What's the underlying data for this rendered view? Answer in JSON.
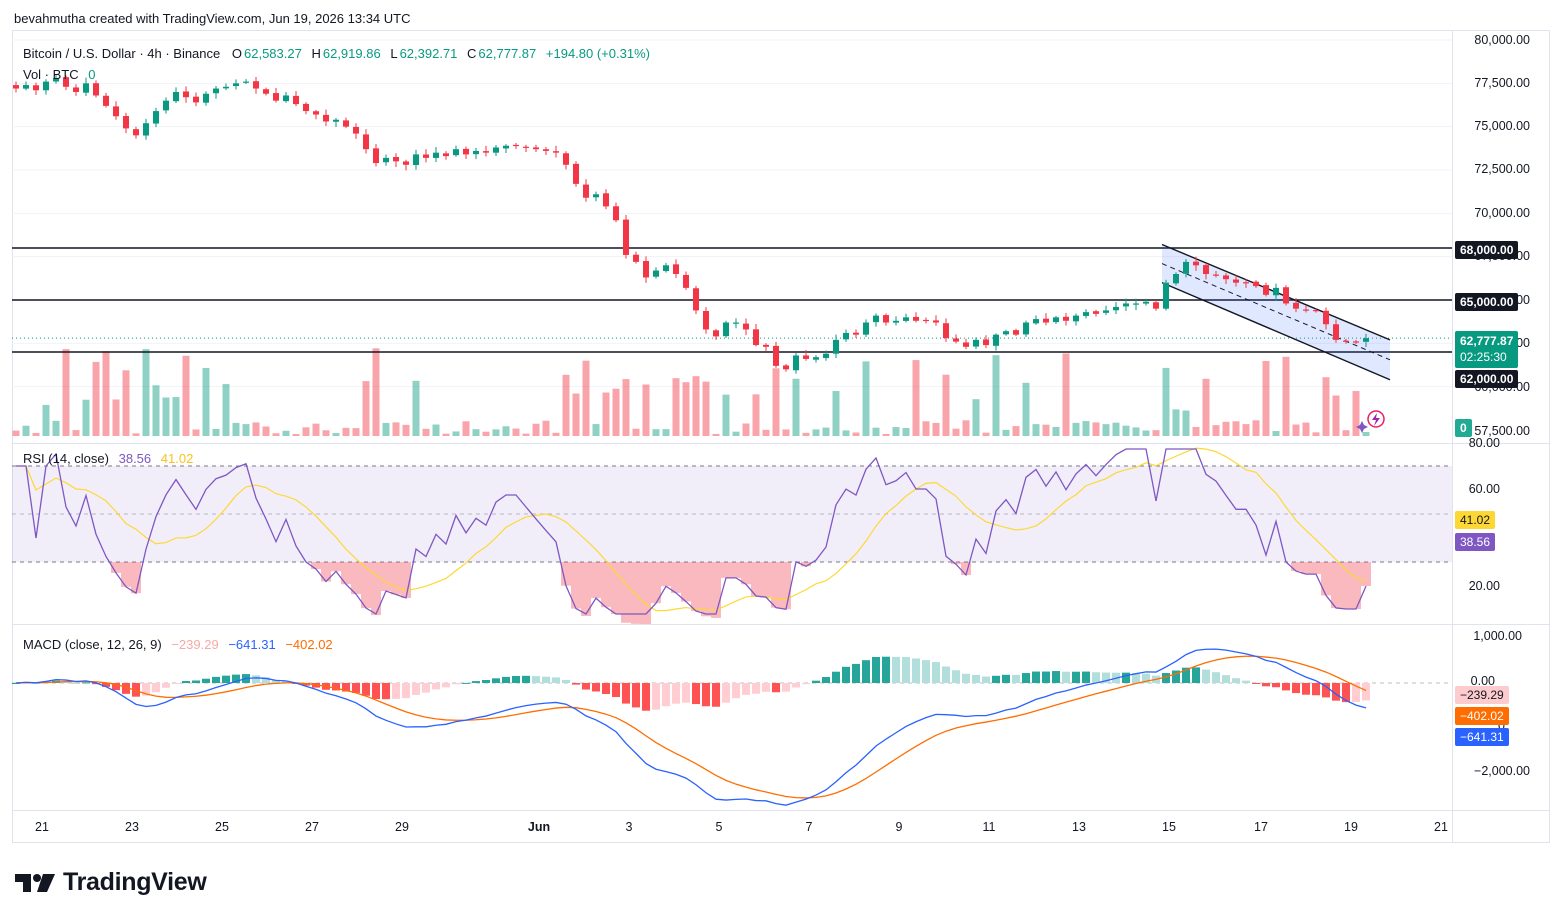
{
  "header": {
    "caption": "bevahmutha created with TradingView.com, Jun 19, 2026 13:34 UTC"
  },
  "legend": {
    "symbol": "Bitcoin / U.S. Dollar · 4h · Binance",
    "o_label": "O",
    "o_value": "62,583.27",
    "h_label": "H",
    "h_value": "62,919.86",
    "l_label": "L",
    "l_value": "62,392.71",
    "c_label": "C",
    "c_value": "62,777.87",
    "change": "+194.80 (+0.31%)",
    "volume_label": "Vol · BTC",
    "volume_value": "0"
  },
  "price_axis": [
    "80,000.00",
    "77,500.00",
    "75,000.00",
    "72,500.00",
    "70,000.00",
    "67,500.00",
    "65,000.00",
    "62,500.00",
    "60,000.00",
    "57,500.00"
  ],
  "price_tags": {
    "r68": "68,000.00",
    "r65": "65,000.00",
    "last": "62,777.87",
    "countdown": "02:25:30",
    "s62": "62,000.00",
    "vol": "0"
  },
  "rsi": {
    "label": "RSI (14, close)",
    "rsi_value": "38.56",
    "ma_value": "41.02",
    "axis": [
      "80.00",
      "60.00",
      "20.00"
    ]
  },
  "macd": {
    "label": "MACD (close, 12, 26, 9)",
    "hist_value": "−239.29",
    "macd_value": "−641.31",
    "signal_value": "−402.02",
    "axis": [
      "1,000.00",
      "0.00",
      "0",
      "−2,000.00"
    ]
  },
  "date_axis": [
    "21",
    "23",
    "25",
    "27",
    "29",
    "Jun",
    "3",
    "5",
    "7",
    "9",
    "11",
    "13",
    "15",
    "17",
    "19",
    "21"
  ],
  "footer": {
    "brand": "TradingView"
  },
  "colors": {
    "up": "#089981",
    "down": "#f23645",
    "rsi": "#7e57c2",
    "rsi_ma": "#fdd835",
    "macd": "#2962ff",
    "signal": "#ff6d00",
    "channel": "#2962ff"
  },
  "chart_data": {
    "type": "candlestick",
    "closes": [
      77200,
      77400,
      77100,
      77600,
      77800,
      77300,
      77000,
      77500,
      76800,
      76200,
      75600,
      74900,
      74500,
      75200,
      75900,
      76500,
      77000,
      76700,
      76400,
      76900,
      77200,
      77300,
      77500,
      77600,
      77200,
      76900,
      76500,
      76800,
      76300,
      75900,
      75700,
      75300,
      75400,
      75000,
      74600,
      73700,
      72900,
      73200,
      73000,
      72800,
      73400,
      73200,
      73500,
      73300,
      73700,
      73400,
      73600,
      73500,
      73800,
      73900,
      73900,
      73800,
      73700,
      73600,
      73500,
      72800,
      71700,
      70900,
      71100,
      70400,
      69600,
      67600,
      67200,
      66300,
      66700,
      67000,
      66500,
      65700,
      64400,
      63300,
      62900,
      63700,
      63700,
      63300,
      62400,
      62300,
      61200,
      61000,
      61800,
      61600,
      61700,
      61900,
      62700,
      63100,
      63000,
      63700,
      64100,
      63700,
      63800,
      64000,
      63800,
      63800,
      63700,
      62800,
      62600,
      62300,
      62700,
      62400,
      63000,
      63200,
      63000,
      63700,
      63900,
      63700,
      64000,
      63800,
      64100,
      64300,
      64200,
      64400,
      64600,
      64800,
      64800,
      64900,
      64500,
      66000,
      66500,
      67200,
      67000,
      66500,
      66400,
      66200,
      66000,
      66000,
      65800,
      65300,
      65700,
      64800,
      64500,
      64400,
      64400,
      63600,
      62700,
      62600,
      62600,
      62800
    ],
    "rsi_series": "RSI (14, close)",
    "macd_series": "MACD (close, 12, 26, 9)",
    "lines": [
      68000,
      65000,
      62000
    ],
    "pattern": "descending channel"
  }
}
